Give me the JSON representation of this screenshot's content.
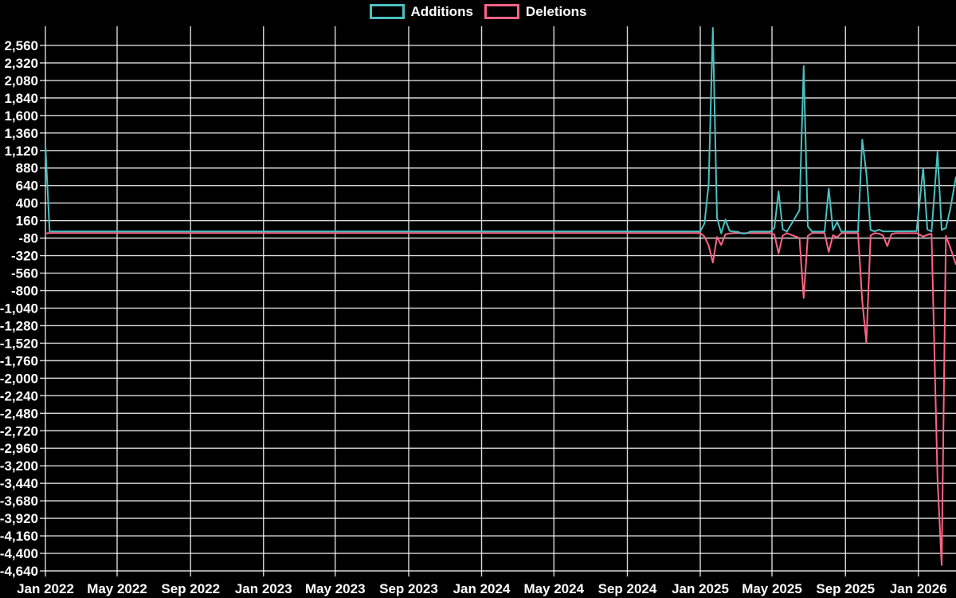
{
  "chart_data": {
    "type": "line",
    "title": "",
    "background": "#000000",
    "grid": true,
    "grid_color": "rgba(255,255,255,0.85)",
    "text_color": "#ffffff",
    "legend_position": "top-center",
    "legend": [
      {
        "label": "Additions",
        "color": "#4bc0c0"
      },
      {
        "label": "Deletions",
        "color": "#ff6384"
      }
    ],
    "ylim": [
      -4640,
      2800
    ],
    "y_tick_step": 240,
    "y_ticks": [
      2560,
      2320,
      2080,
      1840,
      1600,
      1360,
      1120,
      880,
      640,
      400,
      160,
      -80,
      -320,
      -560,
      -800,
      -1040,
      -1280,
      -1520,
      -1760,
      -2000,
      -2240,
      -2480,
      -2720,
      -2960,
      -3200,
      -3440,
      -3680,
      -3920,
      -4160,
      -4400,
      -4640
    ],
    "x_domain": [
      "2022-01-01",
      "2026-03-05"
    ],
    "x_ticks": [
      {
        "label": "Jan 2022",
        "date": "2022-01-01"
      },
      {
        "label": "May 2022",
        "date": "2022-05-01"
      },
      {
        "label": "Sep 2022",
        "date": "2022-09-01"
      },
      {
        "label": "Jan 2023",
        "date": "2023-01-01"
      },
      {
        "label": "May 2023",
        "date": "2023-05-01"
      },
      {
        "label": "Sep 2023",
        "date": "2023-09-01"
      },
      {
        "label": "Jan 2024",
        "date": "2024-01-01"
      },
      {
        "label": "May 2024",
        "date": "2024-05-01"
      },
      {
        "label": "Sep 2024",
        "date": "2024-09-01"
      },
      {
        "label": "Jan 2025",
        "date": "2025-01-01"
      },
      {
        "label": "May 2025",
        "date": "2025-05-01"
      },
      {
        "label": "Sep 2025",
        "date": "2025-09-01"
      },
      {
        "label": "Jan 2026",
        "date": "2026-01-01"
      }
    ],
    "series": [
      {
        "name": "Deletions",
        "color": "#ff6384",
        "points": [
          [
            "2022-01-01",
            -15
          ],
          [
            "2022-01-08",
            -10
          ],
          [
            "2025-01-01",
            -10
          ],
          [
            "2025-01-08",
            -60
          ],
          [
            "2025-01-15",
            -180
          ],
          [
            "2025-01-22",
            -415
          ],
          [
            "2025-01-29",
            -65
          ],
          [
            "2025-02-05",
            -175
          ],
          [
            "2025-02-12",
            -30
          ],
          [
            "2025-02-19",
            -15
          ],
          [
            "2025-02-26",
            -12
          ],
          [
            "2025-03-26",
            -12
          ],
          [
            "2025-04-28",
            -12
          ],
          [
            "2025-05-05",
            -30
          ],
          [
            "2025-05-12",
            -290
          ],
          [
            "2025-05-19",
            -45
          ],
          [
            "2025-05-26",
            -12
          ],
          [
            "2025-06-16",
            -80
          ],
          [
            "2025-06-23",
            -900
          ],
          [
            "2025-06-30",
            -50
          ],
          [
            "2025-07-07",
            -10
          ],
          [
            "2025-07-28",
            -10
          ],
          [
            "2025-08-04",
            -270
          ],
          [
            "2025-08-11",
            -40
          ],
          [
            "2025-08-18",
            -70
          ],
          [
            "2025-08-25",
            -12
          ],
          [
            "2025-09-22",
            -12
          ],
          [
            "2025-09-29",
            -940
          ],
          [
            "2025-10-06",
            -1510
          ],
          [
            "2025-10-13",
            -45
          ],
          [
            "2025-10-20",
            -12
          ],
          [
            "2025-10-27",
            -20
          ],
          [
            "2025-11-03",
            -45
          ],
          [
            "2025-11-10",
            -190
          ],
          [
            "2025-11-17",
            -25
          ],
          [
            "2025-11-24",
            -12
          ],
          [
            "2025-12-29",
            -12
          ],
          [
            "2026-01-09",
            -60
          ],
          [
            "2026-01-16",
            -35
          ],
          [
            "2026-01-23",
            -20
          ],
          [
            "2026-02-02",
            -3380
          ],
          [
            "2026-02-09",
            -4560
          ],
          [
            "2026-02-16",
            -50
          ],
          [
            "2026-02-23",
            -200
          ],
          [
            "2026-03-05",
            -445
          ]
        ]
      },
      {
        "name": "Additions",
        "color": "#4bc0c0",
        "points": [
          [
            "2022-01-01",
            1180
          ],
          [
            "2022-01-08",
            12
          ],
          [
            "2025-01-01",
            12
          ],
          [
            "2025-01-08",
            120
          ],
          [
            "2025-01-15",
            660
          ],
          [
            "2025-01-22",
            2800
          ],
          [
            "2025-01-29",
            200
          ],
          [
            "2025-02-05",
            -15
          ],
          [
            "2025-02-12",
            175
          ],
          [
            "2025-02-19",
            20
          ],
          [
            "2025-02-26",
            10
          ],
          [
            "2025-03-05",
            5
          ],
          [
            "2025-03-12",
            -18
          ],
          [
            "2025-03-19",
            -15
          ],
          [
            "2025-03-26",
            10
          ],
          [
            "2025-04-28",
            10
          ],
          [
            "2025-05-05",
            60
          ],
          [
            "2025-05-12",
            560
          ],
          [
            "2025-05-19",
            40
          ],
          [
            "2025-05-26",
            10
          ],
          [
            "2025-06-16",
            300
          ],
          [
            "2025-06-23",
            2280
          ],
          [
            "2025-06-30",
            80
          ],
          [
            "2025-07-07",
            10
          ],
          [
            "2025-07-28",
            10
          ],
          [
            "2025-08-04",
            600
          ],
          [
            "2025-08-11",
            30
          ],
          [
            "2025-08-18",
            140
          ],
          [
            "2025-08-25",
            10
          ],
          [
            "2025-09-22",
            10
          ],
          [
            "2025-09-29",
            1270
          ],
          [
            "2025-10-06",
            810
          ],
          [
            "2025-10-13",
            30
          ],
          [
            "2025-10-20",
            12
          ],
          [
            "2025-10-27",
            35
          ],
          [
            "2025-11-03",
            12
          ],
          [
            "2025-12-29",
            15
          ],
          [
            "2026-01-09",
            880
          ],
          [
            "2026-01-16",
            40
          ],
          [
            "2026-01-23",
            10
          ],
          [
            "2026-02-02",
            1100
          ],
          [
            "2026-02-09",
            30
          ],
          [
            "2026-02-16",
            60
          ],
          [
            "2026-02-23",
            300
          ],
          [
            "2026-03-05",
            760
          ]
        ]
      }
    ]
  }
}
